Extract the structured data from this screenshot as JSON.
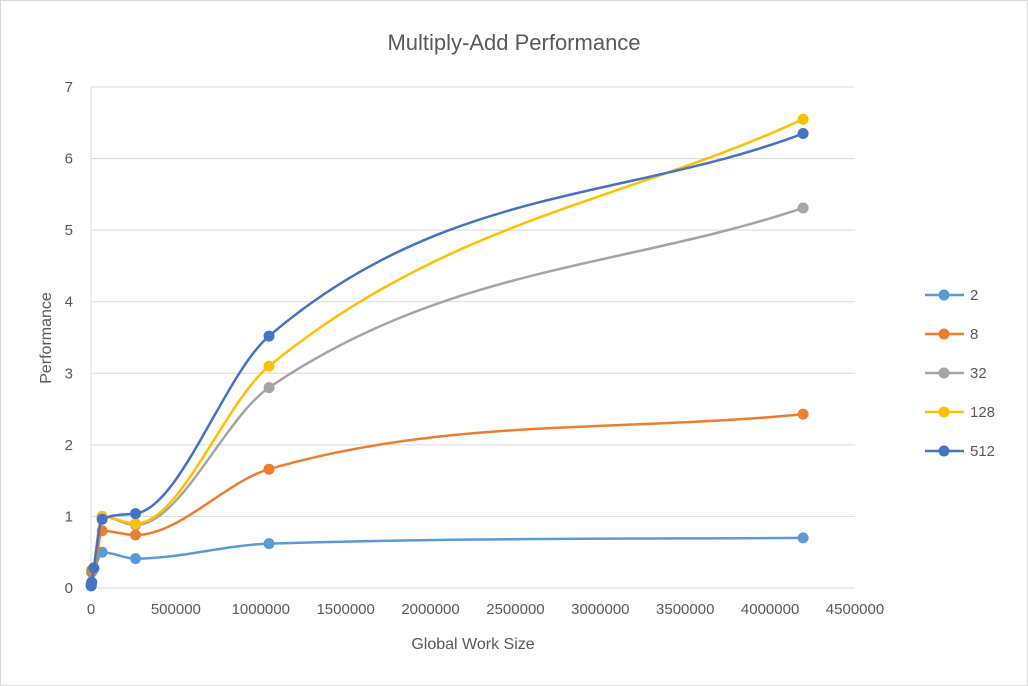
{
  "chart_data": {
    "type": "line",
    "title": "Multiply-Add Performance",
    "xlabel": "Global Work Size",
    "ylabel": "Performance",
    "xlim": [
      0,
      4500000
    ],
    "ylim": [
      0,
      7
    ],
    "x_ticks": [
      "0",
      "500000",
      "1000000",
      "1500000",
      "2000000",
      "2500000",
      "3000000",
      "3500000",
      "4000000",
      "4500000"
    ],
    "y_ticks": [
      "0",
      "1",
      "2",
      "3",
      "4",
      "5",
      "6",
      "7"
    ],
    "grid": true,
    "legend_position": "right",
    "smooth": true,
    "x": [
      1024,
      4096,
      16384,
      65536,
      262144,
      1048576,
      4194304
    ],
    "series": [
      {
        "name": "2",
        "color": "#5B9BD5",
        "values": [
          0.05,
          0.22,
          0.27,
          0.5,
          0.41,
          0.62,
          0.7
        ]
      },
      {
        "name": "8",
        "color": "#ED7D31",
        "values": [
          0.05,
          0.25,
          0.28,
          0.8,
          0.74,
          1.66,
          2.43
        ]
      },
      {
        "name": "32",
        "color": "#A5A5A5",
        "values": [
          0.03,
          0.08,
          0.28,
          1.0,
          0.88,
          2.8,
          5.31
        ]
      },
      {
        "name": "128",
        "color": "#FFC000",
        "values": [
          0.03,
          0.08,
          0.28,
          1.0,
          0.9,
          3.1,
          6.55
        ]
      },
      {
        "name": "512",
        "color": "#4472C4",
        "values": [
          0.03,
          0.08,
          0.28,
          0.96,
          1.04,
          3.52,
          6.35
        ]
      }
    ]
  }
}
